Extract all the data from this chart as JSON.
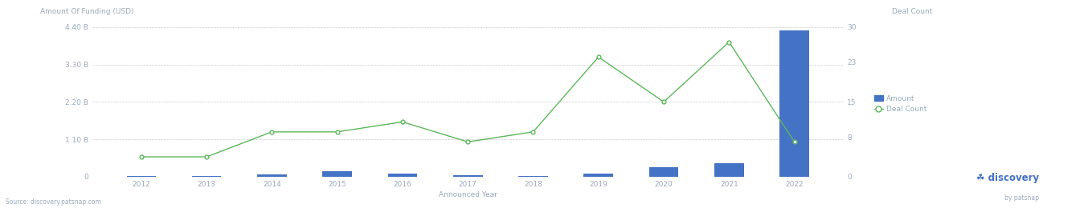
{
  "years": [
    2012,
    2013,
    2014,
    2015,
    2016,
    2017,
    2018,
    2019,
    2020,
    2021,
    2022
  ],
  "amount_usd": [
    18000000.0,
    12000000.0,
    70000000.0,
    160000000.0,
    90000000.0,
    40000000.0,
    15000000.0,
    100000000.0,
    280000000.0,
    400000000.0,
    4300000000.0
  ],
  "deal_count": [
    4,
    4,
    9,
    9,
    11,
    7,
    9,
    24,
    15,
    27,
    7
  ],
  "bar_color": "#4472c4",
  "line_color": "#5cb85c",
  "marker_color": "#5cb85c",
  "left_ylabel": "Amount Of Funding (USD)",
  "right_ylabel": "Deal Count",
  "xlabel": "Announced Year",
  "ylim_left": [
    0,
    4400000000.0
  ],
  "ylim_right": [
    0,
    30
  ],
  "yticks_left": [
    0,
    1100000000.0,
    2200000000.0,
    3300000000.0,
    4400000000.0
  ],
  "yticks_left_labels": [
    "0",
    "1.10 B",
    "2.20 B",
    "3.30 B",
    "4.40 B"
  ],
  "yticks_right": [
    0,
    8,
    15,
    23,
    30
  ],
  "source_text": "Source: discovery.patsnap.com",
  "legend_amount_label": "Amount",
  "legend_deal_label": "Deal Count",
  "background_color": "#ffffff",
  "grid_color": "#cccccc",
  "tick_color": "#99aabb",
  "label_color": "#99aabb"
}
